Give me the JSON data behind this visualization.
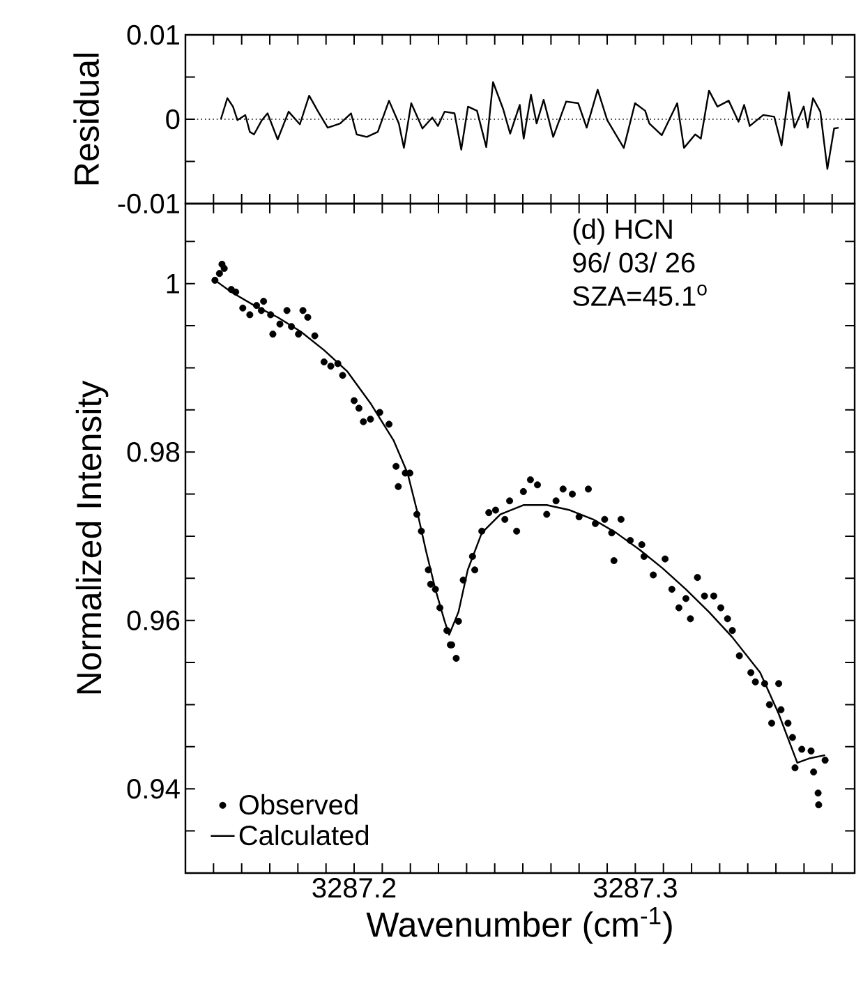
{
  "chart_data": [
    {
      "type": "line",
      "ylabel": "Residual",
      "xlim": [
        3287.14,
        3287.378
      ],
      "ylim": [
        -0.01,
        0.01
      ],
      "xticks": [
        {
          "value": 3287.15,
          "label": null
        },
        {
          "value": 3287.16,
          "label": null
        },
        {
          "value": 3287.17,
          "label": null
        },
        {
          "value": 3287.18,
          "label": null
        },
        {
          "value": 3287.19,
          "label": null
        },
        {
          "value": 3287.2,
          "label": null
        },
        {
          "value": 3287.21,
          "label": null
        },
        {
          "value": 3287.22,
          "label": null
        },
        {
          "value": 3287.23,
          "label": null
        },
        {
          "value": 3287.24,
          "label": null
        },
        {
          "value": 3287.25,
          "label": null
        },
        {
          "value": 3287.26,
          "label": null
        },
        {
          "value": 3287.27,
          "label": null
        },
        {
          "value": 3287.28,
          "label": null
        },
        {
          "value": 3287.29,
          "label": null
        },
        {
          "value": 3287.3,
          "label": null
        },
        {
          "value": 3287.31,
          "label": null
        },
        {
          "value": 3287.32,
          "label": null
        },
        {
          "value": 3287.33,
          "label": null
        },
        {
          "value": 3287.34,
          "label": null
        },
        {
          "value": 3287.35,
          "label": null
        },
        {
          "value": 3287.36,
          "label": null
        },
        {
          "value": 3287.37,
          "label": null
        }
      ],
      "yticks": [
        -0.01,
        {
          "value": -0.005,
          "label": null
        },
        0,
        {
          "value": 0.005,
          "label": null
        },
        0.01
      ],
      "tick_labels": "y",
      "ref_lines": [
        {
          "axis": "y",
          "value": 0,
          "line_style": "dotted"
        }
      ],
      "series": [
        {
          "color": "#000000",
          "x": [
            3287.1526,
            3287.1549,
            3287.1569,
            3287.1585,
            3287.1613,
            3287.1629,
            3287.1644,
            3287.1672,
            3287.1692,
            3287.1728,
            3287.1767,
            3287.1807,
            3287.184,
            3287.1872,
            3287.1906,
            3287.195,
            3287.1989,
            3287.2009,
            3287.2045,
            3287.2084,
            3287.2124,
            3287.2159,
            3287.2177,
            3287.2203,
            3287.2243,
            3287.2278,
            3287.2298,
            3287.2322,
            3287.2357,
            3287.2381,
            3287.2405,
            3287.2437,
            3287.247,
            3287.2494,
            3287.253,
            3287.2555,
            3287.2589,
            3287.2603,
            3287.2629,
            3287.2649,
            3287.2674,
            3287.2708,
            3287.2754,
            3287.2797,
            3287.2827,
            3287.2866,
            3287.29,
            3287.2959,
            3287.2999,
            3287.3035,
            3287.305,
            3287.3094,
            3287.3149,
            3287.3173,
            3287.3213,
            3287.3233,
            3287.3262,
            3287.3292,
            3287.3332,
            3287.3367,
            3287.3387,
            3287.3407,
            3287.3455,
            3287.3494,
            3287.352,
            3287.3546,
            3287.3566,
            3287.3599,
            3287.3613,
            3287.3632,
            3287.3658,
            3287.3683,
            3287.3707,
            3287.3723
          ],
          "values": [
            0,
            0.0025,
            0.0015,
            -0.0001,
            0.0005,
            -0.0015,
            -0.0018,
            -0.0001,
            0.0007,
            -0.0024,
            0.0009,
            -0.0006,
            0.0028,
            0.0009,
            -0.001,
            -0.0005,
            0.0007,
            -0.0018,
            -0.0021,
            -0.0015,
            0.0022,
            -0.0005,
            -0.0034,
            0.0019,
            -0.0011,
            0.0002,
            -0.0008,
            0.0009,
            0.0007,
            -0.0036,
            0.0015,
            0.001,
            -0.0033,
            0.0044,
            0.0012,
            -0.0017,
            0.0017,
            -0.0023,
            0.0029,
            -0.0005,
            0.0023,
            -0.0021,
            0.0021,
            0.0019,
            -0.001,
            0.0035,
            -0.0001,
            -0.0034,
            0.0019,
            0.001,
            -0.0005,
            -0.0019,
            0.0019,
            -0.0034,
            -0.0018,
            -0.0023,
            0.0034,
            0.0015,
            0.0022,
            -0.0003,
            0.0017,
            -0.0008,
            0.0005,
            0.0003,
            -0.0031,
            0.0032,
            -0.001,
            0.0015,
            -0.001,
            0.0025,
            0.0009,
            -0.0059,
            -0.0011,
            -0.001
          ]
        }
      ]
    },
    {
      "type": "scatter",
      "xlabel": "Wavenumber (cm$^{-1}$)",
      "ylabel": "Normalized Intensity",
      "xlim": [
        3287.14,
        3287.378
      ],
      "ylim": [
        0.93,
        1.0095
      ],
      "xticks": [
        {
          "value": 3287.15,
          "label": null
        },
        {
          "value": 3287.16,
          "label": null
        },
        {
          "value": 3287.17,
          "label": null
        },
        {
          "value": 3287.18,
          "label": null
        },
        {
          "value": 3287.19,
          "label": null
        },
        3287.2,
        {
          "value": 3287.21,
          "label": null
        },
        {
          "value": 3287.22,
          "label": null
        },
        {
          "value": 3287.23,
          "label": null
        },
        {
          "value": 3287.24,
          "label": null
        },
        {
          "value": 3287.25,
          "label": null
        },
        {
          "value": 3287.26,
          "label": null
        },
        {
          "value": 3287.27,
          "label": null
        },
        {
          "value": 3287.28,
          "label": null
        },
        {
          "value": 3287.29,
          "label": null
        },
        3287.3,
        {
          "value": 3287.31,
          "label": null
        },
        {
          "value": 3287.32,
          "label": null
        },
        {
          "value": 3287.33,
          "label": null
        },
        {
          "value": 3287.34,
          "label": null
        },
        {
          "value": 3287.35,
          "label": null
        },
        {
          "value": 3287.36,
          "label": null
        },
        {
          "value": 3287.37,
          "label": null
        }
      ],
      "yticks": [
        {
          "value": 0.935,
          "label": null
        },
        0.94,
        {
          "value": 0.945,
          "label": null
        },
        {
          "value": 0.95,
          "label": null
        },
        {
          "value": 0.955,
          "label": null
        },
        0.96,
        {
          "value": 0.965,
          "label": null
        },
        {
          "value": 0.97,
          "label": null
        },
        {
          "value": 0.975,
          "label": null
        },
        0.98,
        {
          "value": 0.985,
          "label": null
        },
        {
          "value": 0.99,
          "label": null
        },
        {
          "value": 0.995,
          "label": null
        },
        1,
        {
          "value": 1.005,
          "label": null
        }
      ],
      "annotations": [
        "(d)  HCN",
        "96/  03/  26",
        "SZA=45.1$^{o}$"
      ],
      "legend": "bottom left",
      "series": [
        {
          "name": "Observed",
          "marker": "circle",
          "color": "#000000",
          "x": [
            3287.1505,
            3287.153,
            3287.1538,
            3287.1521,
            3287.1563,
            3287.1579,
            3287.1604,
            3287.1629,
            3287.1653,
            3287.167,
            3287.1678,
            3287.1711,
            3287.1703,
            3287.1736,
            3287.1761,
            3287.1777,
            3287.1802,
            3287.1818,
            3287.1835,
            3287.186,
            3287.1893,
            3287.1917,
            3287.1942,
            3287.1959,
            3287.2,
            3287.2017,
            3287.2033,
            3287.2058,
            3287.2091,
            3287.2124,
            3287.2149,
            3287.2157,
            3287.2182,
            3287.2198,
            3287.2223,
            3287.2239,
            3287.2264,
            3287.2272,
            3287.2289,
            3287.2305,
            3287.233,
            3287.2342,
            3287.2347,
            3287.2363,
            3287.2371,
            3287.2388,
            3287.2421,
            3287.2429,
            3287.2454,
            3287.2479,
            3287.2503,
            3287.2536,
            3287.2553,
            3287.2578,
            3287.2602,
            3287.2627,
            3287.2652,
            3287.2685,
            3287.2718,
            3287.2743,
            3287.2776,
            3287.28,
            3287.2833,
            3287.2858,
            3287.2891,
            3287.2916,
            3287.2924,
            3287.2949,
            3287.2982,
            3287.3023,
            3287.3031,
            3287.3064,
            3287.3106,
            3287.313,
            3287.3155,
            3287.318,
            3287.3196,
            3287.3221,
            3287.3246,
            3287.3279,
            3287.3304,
            3287.3328,
            3287.3345,
            3287.337,
            3287.3411,
            3287.3427,
            3287.346,
            3287.3477,
            3287.3485,
            3287.351,
            3287.3518,
            3287.3543,
            3287.3559,
            3287.3568,
            3287.3592,
            3287.3625,
            3287.3634,
            3287.365,
            3287.3652,
            3287.3675
          ],
          "values": [
            1.0004,
            1.0023,
            1.0018,
            1.0012,
            0.9993,
            0.999,
            0.9971,
            0.9963,
            0.9974,
            0.9968,
            0.9979,
            0.994,
            0.9963,
            0.9952,
            0.9968,
            0.9949,
            0.994,
            0.9968,
            0.996,
            0.9938,
            0.9907,
            0.9902,
            0.9905,
            0.9891,
            0.9861,
            0.9852,
            0.9836,
            0.9839,
            0.9847,
            0.9833,
            0.9783,
            0.9759,
            0.9775,
            0.9775,
            0.9726,
            0.9706,
            0.966,
            0.9643,
            0.9637,
            0.9615,
            0.9588,
            0.9571,
            0.9571,
            0.9555,
            0.9599,
            0.9648,
            0.9676,
            0.966,
            0.9706,
            0.9728,
            0.9731,
            0.972,
            0.9742,
            0.9706,
            0.9753,
            0.9767,
            0.9761,
            0.9726,
            0.9742,
            0.9756,
            0.975,
            0.9723,
            0.9756,
            0.9715,
            0.972,
            0.9704,
            0.9671,
            0.972,
            0.9695,
            0.969,
            0.9676,
            0.9654,
            0.9673,
            0.9637,
            0.9615,
            0.9626,
            0.9602,
            0.9651,
            0.9629,
            0.9629,
            0.9615,
            0.9602,
            0.9588,
            0.9558,
            0.9538,
            0.9527,
            0.9525,
            0.95,
            0.9478,
            0.9525,
            0.9494,
            0.9478,
            0.9461,
            0.9425,
            0.9447,
            0.9445,
            0.942,
            0.9395,
            0.9381,
            0.9434
          ]
        },
        {
          "name": "Calculated",
          "type": "line",
          "color": "#000000",
          "x": [
            3287.1505,
            3287.1563,
            3287.1645,
            3287.1728,
            3287.181,
            3287.1893,
            3287.1975,
            3287.2058,
            3287.214,
            3287.219,
            3287.2223,
            3287.2256,
            3287.2289,
            3287.2322,
            3287.2338,
            3287.2371,
            3287.2404,
            3287.2454,
            3287.252,
            3287.2602,
            3287.2685,
            3287.2767,
            3287.285,
            3287.2932,
            3287.3015,
            3287.3097,
            3287.318,
            3287.3262,
            3287.3345,
            3287.3444,
            3287.351,
            3287.3576,
            3287.3617,
            3287.3675
          ],
          "values": [
            1.0004,
            0.999,
            0.9974,
            0.996,
            0.9943,
            0.9921,
            0.9896,
            0.9858,
            0.9814,
            0.9775,
            0.9731,
            0.9682,
            0.9637,
            0.9599,
            0.9583,
            0.961,
            0.966,
            0.9704,
            0.9726,
            0.9737,
            0.9737,
            0.9731,
            0.972,
            0.9704,
            0.9684,
            0.9662,
            0.9637,
            0.961,
            0.958,
            0.9538,
            0.9489,
            0.9431,
            0.9436,
            0.944
          ]
        }
      ]
    }
  ]
}
